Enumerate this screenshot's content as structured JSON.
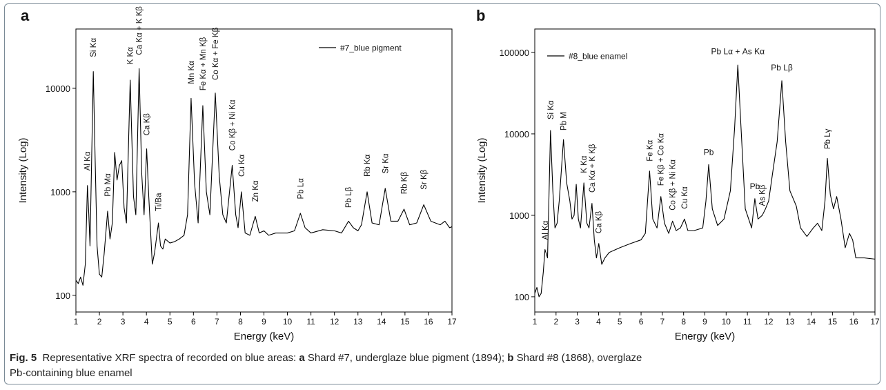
{
  "chart_data": [
    {
      "type": "line",
      "panel": "a",
      "xlabel": "Energy (keV)",
      "ylabel": "Intensity (Log)",
      "log_y": true,
      "xlim": [
        1,
        17
      ],
      "xticks": [
        1,
        2,
        3,
        4,
        5,
        6,
        7,
        8,
        9,
        10,
        11,
        12,
        13,
        14,
        15,
        16,
        17
      ],
      "ylim": [
        69,
        37400
      ],
      "yticks": [
        100,
        1000,
        10000
      ],
      "legend": "upper right",
      "x": [
        1.0,
        1.1,
        1.2,
        1.3,
        1.4,
        1.49,
        1.55,
        1.6,
        1.74,
        1.82,
        1.9,
        2.0,
        2.1,
        2.2,
        2.35,
        2.45,
        2.55,
        2.65,
        2.75,
        2.85,
        2.95,
        3.05,
        3.15,
        3.31,
        3.45,
        3.55,
        3.69,
        3.8,
        3.9,
        4.01,
        4.1,
        4.25,
        4.35,
        4.51,
        4.6,
        4.7,
        4.8,
        5.0,
        5.2,
        5.4,
        5.6,
        5.75,
        5.9,
        6.05,
        6.2,
        6.4,
        6.55,
        6.7,
        6.93,
        7.1,
        7.25,
        7.4,
        7.65,
        7.8,
        7.9,
        8.04,
        8.2,
        8.4,
        8.63,
        8.8,
        9.0,
        9.2,
        9.5,
        10.0,
        10.3,
        10.55,
        10.75,
        11.0,
        11.5,
        12.0,
        12.3,
        12.6,
        12.8,
        13.0,
        13.15,
        13.39,
        13.6,
        13.9,
        14.16,
        14.4,
        14.7,
        14.96,
        15.2,
        15.5,
        15.8,
        16.1,
        16.5,
        16.7,
        16.9,
        17.0
      ],
      "series": [
        {
          "name": "#7_blue pigment",
          "color": "#000000",
          "values": [
            140,
            130,
            150,
            125,
            200,
            1150,
            600,
            300,
            14500,
            2000,
            300,
            160,
            150,
            250,
            650,
            350,
            500,
            2400,
            1300,
            1800,
            2000,
            700,
            500,
            12000,
            900,
            600,
            15500,
            1500,
            600,
            2600,
            900,
            200,
            260,
            500,
            300,
            280,
            350,
            320,
            330,
            350,
            380,
            600,
            8000,
            1200,
            500,
            6800,
            1000,
            600,
            9000,
            1400,
            600,
            500,
            1800,
            600,
            450,
            1000,
            400,
            380,
            580,
            400,
            420,
            380,
            400,
            400,
            420,
            620,
            450,
            400,
            430,
            420,
            400,
            520,
            450,
            420,
            480,
            1000,
            500,
            480,
            1080,
            520,
            520,
            680,
            480,
            500,
            750,
            520,
            480,
            520,
            450,
            460
          ]
        }
      ],
      "annotations": [
        {
          "text": "Al Kα",
          "x": 1.49,
          "y": 1600,
          "vertical": true
        },
        {
          "text": "Si Kα",
          "x": 1.74,
          "y": 20000,
          "vertical": true
        },
        {
          "text": "Pb Mα",
          "x": 2.35,
          "y": 900,
          "vertical": true
        },
        {
          "text": "K Kα",
          "x": 3.31,
          "y": 17000,
          "vertical": true
        },
        {
          "text": "Ca Kα + K Kβ",
          "x": 3.69,
          "y": 21000,
          "vertical": true
        },
        {
          "text": "Ca Kβ",
          "x": 4.01,
          "y": 3500,
          "vertical": true
        },
        {
          "text": "Ti/Ba",
          "x": 4.51,
          "y": 650,
          "vertical": true
        },
        {
          "text": "Mn Kα",
          "x": 5.9,
          "y": 11000,
          "vertical": true
        },
        {
          "text": "Fe Kα + Mn Kβ",
          "x": 6.4,
          "y": 9500,
          "vertical": true
        },
        {
          "text": "Co Kα + Fe Kβ",
          "x": 6.93,
          "y": 12000,
          "vertical": true
        },
        {
          "text": "Co Kβ + Ni Kα",
          "x": 7.65,
          "y": 2500,
          "vertical": true
        },
        {
          "text": "Cu Kα",
          "x": 8.04,
          "y": 1400,
          "vertical": true
        },
        {
          "text": "Zn Kα",
          "x": 8.63,
          "y": 800,
          "vertical": true
        },
        {
          "text": "Pb Lα",
          "x": 10.55,
          "y": 850,
          "vertical": true
        },
        {
          "text": "Pb Lβ",
          "x": 12.6,
          "y": 700,
          "vertical": true
        },
        {
          "text": "Rb Kα",
          "x": 13.39,
          "y": 1400,
          "vertical": true
        },
        {
          "text": "Sr Kα",
          "x": 14.16,
          "y": 1500,
          "vertical": true
        },
        {
          "text": "Rb Kβ",
          "x": 14.96,
          "y": 950,
          "vertical": true
        },
        {
          "text": "Sr Kβ",
          "x": 15.8,
          "y": 1050,
          "vertical": true
        }
      ]
    },
    {
      "type": "line",
      "panel": "b",
      "xlabel": "Energy (keV)",
      "ylabel": "Intensity (Log)",
      "log_y": true,
      "xlim": [
        1,
        17
      ],
      "xticks": [
        1,
        2,
        3,
        4,
        5,
        6,
        7,
        8,
        9,
        10,
        11,
        12,
        13,
        14,
        15,
        16,
        17
      ],
      "ylim": [
        65,
        194000
      ],
      "yticks": [
        100,
        1000,
        10000,
        100000
      ],
      "legend": "upper left",
      "x": [
        1.0,
        1.1,
        1.2,
        1.3,
        1.4,
        1.48,
        1.6,
        1.74,
        1.85,
        1.95,
        2.05,
        2.15,
        2.35,
        2.5,
        2.65,
        2.75,
        2.85,
        2.95,
        3.05,
        3.15,
        3.31,
        3.45,
        3.55,
        3.69,
        3.8,
        3.9,
        4.01,
        4.15,
        4.3,
        4.5,
        5.0,
        5.5,
        6.0,
        6.2,
        6.4,
        6.55,
        6.75,
        6.93,
        7.1,
        7.3,
        7.48,
        7.65,
        7.85,
        8.04,
        8.2,
        8.5,
        8.9,
        9.05,
        9.18,
        9.35,
        9.6,
        9.9,
        10.2,
        10.4,
        10.55,
        10.7,
        10.9,
        11.2,
        11.35,
        11.5,
        11.7,
        11.85,
        12.0,
        12.2,
        12.4,
        12.62,
        12.8,
        13.0,
        13.3,
        13.5,
        13.8,
        14.1,
        14.3,
        14.5,
        14.65,
        14.76,
        14.9,
        15.05,
        15.2,
        15.4,
        15.6,
        15.8,
        15.95,
        16.1,
        16.5,
        17.0
      ],
      "series": [
        {
          "name": "#8_blue enamel",
          "color": "#000000",
          "values": [
            110,
            130,
            100,
            110,
            200,
            380,
            300,
            11000,
            2000,
            700,
            800,
            1500,
            8500,
            2500,
            1500,
            900,
            1000,
            2400,
            900,
            700,
            2500,
            800,
            700,
            1400,
            500,
            300,
            450,
            250,
            300,
            350,
            400,
            450,
            500,
            600,
            3500,
            900,
            700,
            1700,
            800,
            600,
            850,
            650,
            700,
            900,
            650,
            650,
            700,
            1500,
            4200,
            1200,
            750,
            900,
            2000,
            12000,
            70000,
            12000,
            1200,
            700,
            1600,
            900,
            1000,
            1200,
            1500,
            3500,
            8000,
            45000,
            8000,
            2000,
            1300,
            700,
            550,
            700,
            800,
            650,
            1500,
            5000,
            1800,
            1200,
            1700,
            900,
            400,
            600,
            500,
            300,
            300,
            290
          ]
        }
      ],
      "annotations": [
        {
          "text": "Al Kα",
          "x": 1.48,
          "y": 500,
          "vertical": true
        },
        {
          "text": "Si Kα",
          "x": 1.74,
          "y": 15000,
          "vertical": true
        },
        {
          "text": "Pb M",
          "x": 2.35,
          "y": 11000,
          "vertical": true
        },
        {
          "text": "K Kα",
          "x": 3.31,
          "y": 3300,
          "vertical": true
        },
        {
          "text": "Ca Kα + K Kβ",
          "x": 3.69,
          "y": 1900,
          "vertical": true
        },
        {
          "text": "Ca Kβ",
          "x": 4.01,
          "y": 600,
          "vertical": true
        },
        {
          "text": "Fe Kα",
          "x": 6.4,
          "y": 4600,
          "vertical": true
        },
        {
          "text": "Fe Kβ + Co Kα",
          "x": 6.93,
          "y": 2300,
          "vertical": true
        },
        {
          "text": "Co Kβ + Ni Kα",
          "x": 7.48,
          "y": 1150,
          "vertical": true
        },
        {
          "text": "Cu Kα",
          "x": 8.04,
          "y": 1200,
          "vertical": true
        },
        {
          "text": "Pb",
          "x": 9.18,
          "y": 5500,
          "vertical": false
        },
        {
          "text": "Pb Lα + As Kα",
          "x": 10.55,
          "y": 95000,
          "vertical": false
        },
        {
          "text": "Pb",
          "x": 11.35,
          "y": 2100,
          "vertical": false
        },
        {
          "text": "As Kβ",
          "x": 11.7,
          "y": 1300,
          "vertical": true
        },
        {
          "text": "Pb Lβ",
          "x": 12.62,
          "y": 60000,
          "vertical": false
        },
        {
          "text": "Pb Lγ",
          "x": 14.76,
          "y": 6500,
          "vertical": true
        }
      ]
    }
  ],
  "caption": {
    "label": "Fig. 5",
    "parts": [
      "Representative XRF spectra of recorded on blue areas: ",
      "a",
      " Shard #7, underglaze blue pigment (1894); ",
      "b",
      " Shard #8 (1868), overglaze",
      "Pb-containing blue enamel"
    ]
  }
}
